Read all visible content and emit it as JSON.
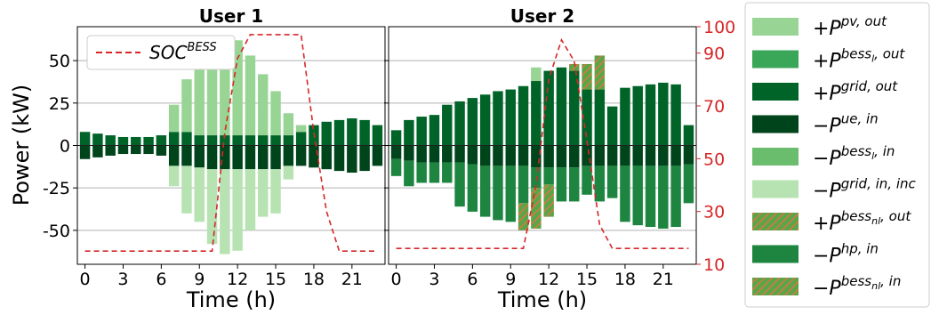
{
  "figure": {
    "ylabel": "Power (kW)",
    "left_yticks": [
      -50,
      -25,
      0,
      25,
      50
    ],
    "right_yticks": [
      10,
      30,
      50,
      70,
      90,
      100
    ],
    "right_axis_color": "#d62728",
    "soc_color": "#d62728"
  },
  "legend": {
    "entries": [
      {
        "key": "pv_out",
        "label": "+P",
        "sup": "pv, out",
        "color": "#98d594",
        "hatch": false
      },
      {
        "key": "bessl_out",
        "label": "+P",
        "sup": "bess",
        "subsup": "l",
        "sup2": ", out",
        "color": "#3aa657",
        "hatch": false
      },
      {
        "key": "grid_out",
        "label": "+P",
        "sup": "grid, out",
        "color": "#006428",
        "hatch": false
      },
      {
        "key": "ue_in",
        "label": "−P",
        "sup": "ue, in",
        "color": "#00441b",
        "hatch": false
      },
      {
        "key": "bessl_in",
        "label": "−P",
        "sup": "bess",
        "subsup": "l",
        "sup2": ", in",
        "color": "#6bbd6e",
        "hatch": false
      },
      {
        "key": "grid_in",
        "label": "−P",
        "sup": "grid, in, inc",
        "color": "#b7e2b1",
        "hatch": false
      },
      {
        "key": "bessnl_out",
        "label": "+P",
        "sup": "bess",
        "subsup": "nl",
        "sup2": ", out",
        "color": "#5aa54b",
        "hatch": true
      },
      {
        "key": "hp_in",
        "label": "−P",
        "sup": "hp, in",
        "color": "#1e8540",
        "hatch": false
      },
      {
        "key": "bessnl_in",
        "label": "−P",
        "sup": "bess",
        "subsup": "nl",
        "sup2": ", in",
        "color": "#5aa54b",
        "hatch": true
      }
    ]
  },
  "chart_data": [
    {
      "type": "bar",
      "title": "User 1",
      "xlabel": "Time (h)",
      "ylabel": "Power (kW)",
      "xticks": [
        0,
        3,
        6,
        9,
        12,
        15,
        18,
        21
      ],
      "x": [
        0,
        1,
        2,
        3,
        4,
        5,
        6,
        7,
        8,
        9,
        10,
        11,
        12,
        13,
        14,
        15,
        16,
        17,
        18,
        19,
        20,
        21,
        22,
        23
      ],
      "ylim": [
        -70,
        70
      ],
      "y2lim": [
        10,
        100
      ],
      "legend_label": "SOC",
      "legend_sup": "BESS",
      "legend_position": "top-left",
      "series": [
        {
          "key": "grid_out",
          "name": "+P grid, out",
          "values": [
            8,
            7,
            6,
            5,
            5,
            5,
            6,
            8,
            8,
            6,
            6,
            6,
            6,
            6,
            6,
            6,
            6,
            8,
            12,
            14,
            15,
            16,
            15,
            12
          ]
        },
        {
          "key": "pv_out",
          "name": "+P pv, out",
          "values": [
            0,
            0,
            0,
            0,
            0,
            0,
            0,
            16,
            31,
            40,
            48,
            54,
            56,
            47,
            36,
            26,
            13,
            4,
            0,
            0,
            0,
            0,
            0,
            0
          ]
        },
        {
          "key": "ue_in",
          "name": "−P ue, in",
          "values": [
            -8,
            -7,
            -6,
            -5,
            -5,
            -5,
            -6,
            -12,
            -12,
            -13,
            -14,
            -14,
            -14,
            -14,
            -14,
            -14,
            -12,
            -12,
            -13,
            -14,
            -15,
            -16,
            -15,
            -12
          ]
        },
        {
          "key": "grid_in",
          "name": "−P grid, in, inc",
          "values": [
            0,
            0,
            0,
            0,
            0,
            0,
            0,
            -12,
            -28,
            -32,
            -44,
            -50,
            -48,
            -36,
            -28,
            -26,
            -8,
            0,
            0,
            0,
            0,
            0,
            0,
            0
          ]
        }
      ],
      "soc": {
        "name": "SOC BESS",
        "values": [
          15,
          15,
          15,
          15,
          15,
          15,
          15,
          15,
          15,
          15,
          15,
          60,
          88,
          97,
          97,
          97,
          97,
          97,
          60,
          30,
          15,
          15,
          15,
          15
        ]
      }
    },
    {
      "type": "bar",
      "title": "User 2",
      "xlabel": "Time (h)",
      "xticks": [
        0,
        3,
        6,
        9,
        12,
        15,
        18,
        21
      ],
      "x": [
        0,
        1,
        2,
        3,
        4,
        5,
        6,
        7,
        8,
        9,
        10,
        11,
        12,
        13,
        14,
        15,
        16,
        17,
        18,
        19,
        20,
        21,
        22,
        23
      ],
      "ylim": [
        -70,
        70
      ],
      "y2lim": [
        10,
        100
      ],
      "series": [
        {
          "key": "grid_out",
          "name": "+P grid, out",
          "values": [
            9,
            15,
            17,
            18,
            24,
            26,
            28,
            30,
            32,
            33,
            35,
            38,
            44,
            46,
            44,
            33,
            33,
            23,
            34,
            35,
            36,
            37,
            36,
            12
          ]
        },
        {
          "key": "pv_out",
          "name": "+P pv, out",
          "values": [
            0,
            0,
            0,
            0,
            0,
            0,
            0,
            0,
            0,
            0,
            0,
            8,
            0,
            0,
            0,
            0,
            0,
            0,
            0,
            0,
            0,
            0,
            0,
            0
          ]
        },
        {
          "key": "bessnl_out",
          "name": "+P bess nl, out",
          "values": [
            0,
            0,
            0,
            0,
            0,
            0,
            0,
            0,
            0,
            0,
            0,
            0,
            0,
            0,
            4,
            15,
            20,
            0,
            0,
            0,
            0,
            0,
            0,
            0
          ]
        },
        {
          "key": "ue_in",
          "name": "−P ue, in",
          "values": [
            -8,
            -9,
            -10,
            -10,
            -10,
            -10,
            -11,
            -12,
            -12,
            -12,
            -12,
            -13,
            -13,
            -13,
            -13,
            -12,
            -12,
            -12,
            -12,
            -12,
            -12,
            -12,
            -12,
            -11
          ]
        },
        {
          "key": "hp_in",
          "name": "−P hp, in",
          "values": [
            -10,
            -15,
            -12,
            -12,
            -12,
            -26,
            -28,
            -30,
            -32,
            -33,
            -22,
            -12,
            -10,
            -20,
            -20,
            -17,
            -21,
            -19,
            -33,
            -35,
            -36,
            -37,
            -36,
            -23
          ]
        },
        {
          "key": "bessnl_in",
          "name": "−P bess nl, in",
          "values": [
            0,
            0,
            0,
            0,
            0,
            0,
            0,
            0,
            0,
            0,
            -16,
            -24,
            -19,
            0,
            0,
            0,
            0,
            0,
            0,
            0,
            0,
            0,
            0,
            0
          ]
        }
      ],
      "soc": {
        "name": "SOC BESS",
        "values": [
          16,
          16,
          16,
          16,
          16,
          16,
          16,
          16,
          16,
          16,
          16,
          40,
          80,
          95,
          87,
          57,
          25,
          16,
          16,
          16,
          16,
          16,
          16,
          16
        ]
      }
    }
  ]
}
